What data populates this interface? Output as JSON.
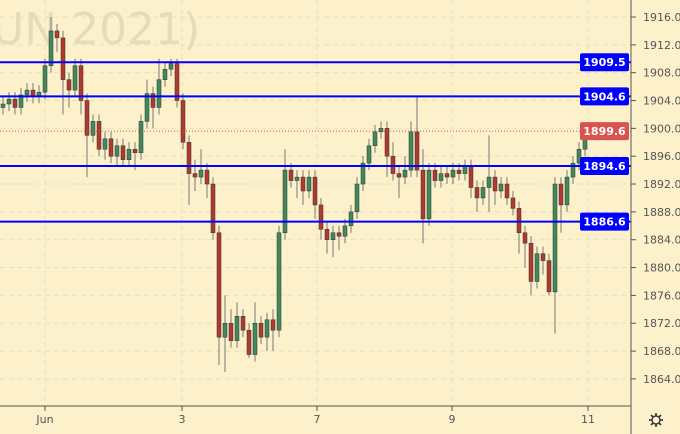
{
  "watermark": "UN 2021)",
  "chart_data": {
    "type": "candlestick",
    "ylim": [
      1860,
      1918
    ],
    "y_ticks": [
      1864,
      1868,
      1872,
      1876,
      1880,
      1884,
      1888,
      1892,
      1896,
      1900,
      1904,
      1908,
      1912,
      1916
    ],
    "x_tick_labels": [
      "Jun",
      "3",
      "7",
      "9",
      "11"
    ],
    "grid": true,
    "colors": {
      "up": "#3f8a5c",
      "down": "#b03a2e",
      "level_line": "#0000ff",
      "last_price": "#d9534f",
      "background": "#fdf1cb"
    },
    "horizontal_levels": [
      1909.5,
      1904.6,
      1894.6,
      1886.6
    ],
    "level_labels": [
      "1909.5",
      "1904.6",
      "1894.6",
      "1886.6"
    ],
    "last_price": 1899.6,
    "last_price_label": "1899.6",
    "candles_ohlc": [
      [
        1903,
        1904.5,
        1902,
        1903.5
      ],
      [
        1903.5,
        1905.2,
        1902.5,
        1904.2
      ],
      [
        1904.2,
        1905.2,
        1902,
        1903
      ],
      [
        1903,
        1905.8,
        1902,
        1904.8
      ],
      [
        1904.8,
        1906.5,
        1903.8,
        1905.5
      ],
      [
        1905.5,
        1906.5,
        1903.6,
        1904.6
      ],
      [
        1904.6,
        1906.2,
        1903.6,
        1905.2
      ],
      [
        1905.2,
        1910,
        1904.2,
        1909
      ],
      [
        1909,
        1916,
        1908,
        1914
      ],
      [
        1914,
        1915,
        1911,
        1913
      ],
      [
        1913,
        1914,
        1902,
        1907
      ],
      [
        1907,
        1908,
        1903,
        1905.5
      ],
      [
        1905.5,
        1910,
        1904.5,
        1909
      ],
      [
        1909,
        1910,
        1902,
        1904
      ],
      [
        1904,
        1905,
        1893,
        1899
      ],
      [
        1899,
        1902,
        1898,
        1901
      ],
      [
        1901,
        1902,
        1896,
        1897
      ],
      [
        1897,
        1899.5,
        1895.5,
        1898.5
      ],
      [
        1898.5,
        1899.5,
        1895,
        1896
      ],
      [
        1896,
        1898.5,
        1894.5,
        1897.5
      ],
      [
        1897.5,
        1898.5,
        1894.5,
        1895.5
      ],
      [
        1895.5,
        1898,
        1894.5,
        1897
      ],
      [
        1897,
        1898,
        1894,
        1896.5
      ],
      [
        1896.5,
        1902,
        1895.5,
        1901
      ],
      [
        1901,
        1907,
        1900,
        1905
      ],
      [
        1905,
        1906,
        1900,
        1903
      ],
      [
        1903,
        1910,
        1902,
        1907
      ],
      [
        1907,
        1909.5,
        1906,
        1908.5
      ],
      [
        1908.5,
        1910,
        1907.5,
        1909.3
      ],
      [
        1909.3,
        1910,
        1903,
        1904
      ],
      [
        1904,
        1905,
        1897,
        1898
      ],
      [
        1898,
        1899,
        1889,
        1893.5
      ],
      [
        1893.5,
        1895.5,
        1891,
        1893
      ],
      [
        1893,
        1897,
        1892,
        1894
      ],
      [
        1894,
        1895,
        1890,
        1892
      ],
      [
        1892,
        1893,
        1884,
        1885
      ],
      [
        1885,
        1886,
        1866,
        1870
      ],
      [
        1870,
        1876,
        1865,
        1872
      ],
      [
        1872,
        1874,
        1868.5,
        1869.5
      ],
      [
        1869.5,
        1875,
        1868.5,
        1873
      ],
      [
        1873,
        1874,
        1870,
        1871
      ],
      [
        1871,
        1872,
        1867,
        1867.5
      ],
      [
        1867.5,
        1875,
        1866.5,
        1872
      ],
      [
        1872,
        1873,
        1869,
        1870
      ],
      [
        1870,
        1873.5,
        1868,
        1872.5
      ],
      [
        1872.5,
        1874,
        1868,
        1871
      ],
      [
        1871,
        1886,
        1870,
        1885
      ],
      [
        1885,
        1897,
        1884,
        1894
      ],
      [
        1894,
        1895,
        1891.5,
        1892.5
      ],
      [
        1892.5,
        1894,
        1890,
        1893
      ],
      [
        1893,
        1894,
        1889,
        1891
      ],
      [
        1891,
        1894,
        1890,
        1893
      ],
      [
        1893,
        1894,
        1887,
        1889
      ],
      [
        1889,
        1890,
        1884,
        1885.5
      ],
      [
        1885.5,
        1886.5,
        1882,
        1884
      ],
      [
        1884,
        1886,
        1881.5,
        1885
      ],
      [
        1885,
        1886,
        1882.5,
        1884.5
      ],
      [
        1884.5,
        1887,
        1883.5,
        1886
      ],
      [
        1886,
        1889,
        1885,
        1888
      ],
      [
        1888,
        1893,
        1887,
        1892
      ],
      [
        1892,
        1896,
        1891,
        1895
      ],
      [
        1895,
        1898.5,
        1894,
        1897.5
      ],
      [
        1897.5,
        1900.5,
        1896.5,
        1899.5
      ],
      [
        1899.5,
        1901,
        1898.5,
        1900
      ],
      [
        1900,
        1901,
        1893,
        1896
      ],
      [
        1896,
        1898,
        1892.5,
        1893.5
      ],
      [
        1893.5,
        1894.5,
        1890,
        1893
      ],
      [
        1893,
        1896,
        1892,
        1894
      ],
      [
        1894,
        1901,
        1893,
        1899.5
      ],
      [
        1899.5,
        1904.5,
        1893,
        1894
      ],
      [
        1894,
        1897,
        1883.5,
        1887
      ],
      [
        1887,
        1895,
        1886,
        1894
      ],
      [
        1894,
        1895,
        1891.5,
        1892.5
      ],
      [
        1892.5,
        1894.5,
        1891.5,
        1893.5
      ],
      [
        1893.5,
        1894.5,
        1892,
        1893
      ],
      [
        1893,
        1895,
        1892,
        1894
      ],
      [
        1894,
        1895,
        1892.5,
        1893.5
      ],
      [
        1893.5,
        1895.5,
        1892.5,
        1894.5
      ],
      [
        1894.5,
        1895.5,
        1890,
        1891.5
      ],
      [
        1891.5,
        1892.5,
        1888,
        1890
      ],
      [
        1890,
        1892.5,
        1889,
        1891.5
      ],
      [
        1891.5,
        1899,
        1888,
        1893
      ],
      [
        1893,
        1894,
        1889,
        1891
      ],
      [
        1891,
        1893,
        1890,
        1892
      ],
      [
        1892,
        1893,
        1889,
        1890
      ],
      [
        1890,
        1891,
        1887.5,
        1888.5
      ],
      [
        1888.5,
        1889.5,
        1882,
        1885
      ],
      [
        1885,
        1886,
        1880,
        1883.5
      ],
      [
        1883.5,
        1884.5,
        1876,
        1878
      ],
      [
        1878,
        1883,
        1877,
        1882
      ],
      [
        1882,
        1883,
        1879,
        1881
      ],
      [
        1881,
        1882,
        1876,
        1876.5
      ],
      [
        1876.5,
        1893,
        1870.5,
        1892
      ],
      [
        1892,
        1893,
        1885,
        1889
      ],
      [
        1889,
        1894,
        1888,
        1893
      ],
      [
        1893,
        1896,
        1892,
        1895
      ],
      [
        1895,
        1898,
        1894,
        1897
      ],
      [
        1897,
        1900,
        1896,
        1899.6
      ]
    ]
  },
  "settings_icon": "gear-icon"
}
